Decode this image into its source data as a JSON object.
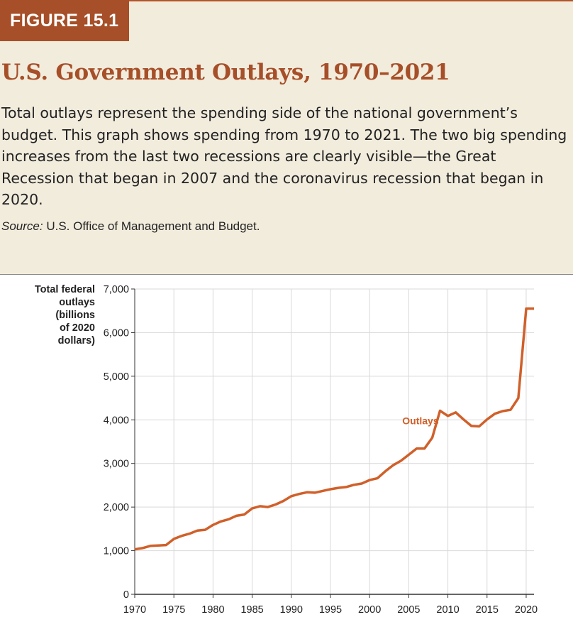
{
  "figure": {
    "badge": "FIGURE 15.1",
    "title": "U.S. Government Outlays, 1970–2021",
    "description": "Total outlays represent the spending side of the national government’s budget. This graph shows spending from 1970 to 2021. The two big spending increases from the last two recessions are clearly visible—the Great Recession that began in 2007 and the coronavirus recession that began in 2020.",
    "source_label": "Source:",
    "source_text": " U.S. Office of Management and Budget."
  },
  "colors": {
    "accent": "#a64f28",
    "line": "#d0602a",
    "panel": "#f2ecdd",
    "grid": "#d9d9d9"
  },
  "chart_data": {
    "type": "line",
    "ylabel_lines": [
      "Total federal",
      "outlays",
      "(billions",
      "of 2020",
      "dollars)"
    ],
    "xlim": [
      1970,
      2021
    ],
    "ylim": [
      0,
      7000
    ],
    "x_ticks": [
      1970,
      1975,
      1980,
      1985,
      1990,
      1995,
      2000,
      2005,
      2010,
      2015,
      2020
    ],
    "y_ticks": [
      0,
      1000,
      2000,
      3000,
      4000,
      5000,
      6000,
      7000
    ],
    "y_tick_labels": [
      "0",
      "1,000",
      "2,000",
      "3,000",
      "4,000",
      "5,000",
      "6,000",
      "7,000"
    ],
    "grid": "horizontal",
    "series": [
      {
        "name": "Outlays",
        "x": [
          1970,
          1971,
          1972,
          1973,
          1974,
          1975,
          1976,
          1977,
          1978,
          1979,
          1980,
          1981,
          1982,
          1983,
          1984,
          1985,
          1986,
          1987,
          1988,
          1989,
          1990,
          1991,
          1992,
          1993,
          1994,
          1995,
          1996,
          1997,
          1998,
          1999,
          2000,
          2001,
          2002,
          2003,
          2004,
          2005,
          2006,
          2007,
          2008,
          2009,
          2010,
          2011,
          2012,
          2013,
          2014,
          2015,
          2016,
          2017,
          2018,
          2019,
          2020,
          2021
        ],
        "y": [
          1030,
          1060,
          1110,
          1120,
          1130,
          1270,
          1340,
          1390,
          1460,
          1480,
          1590,
          1670,
          1720,
          1800,
          1830,
          1970,
          2020,
          2000,
          2060,
          2140,
          2250,
          2300,
          2340,
          2330,
          2370,
          2410,
          2440,
          2460,
          2510,
          2540,
          2620,
          2660,
          2820,
          2960,
          3060,
          3200,
          3340,
          3340,
          3590,
          4210,
          4090,
          4170,
          4010,
          3860,
          3850,
          4010,
          4140,
          4200,
          4230,
          4500,
          6550,
          6550
        ]
      }
    ]
  }
}
